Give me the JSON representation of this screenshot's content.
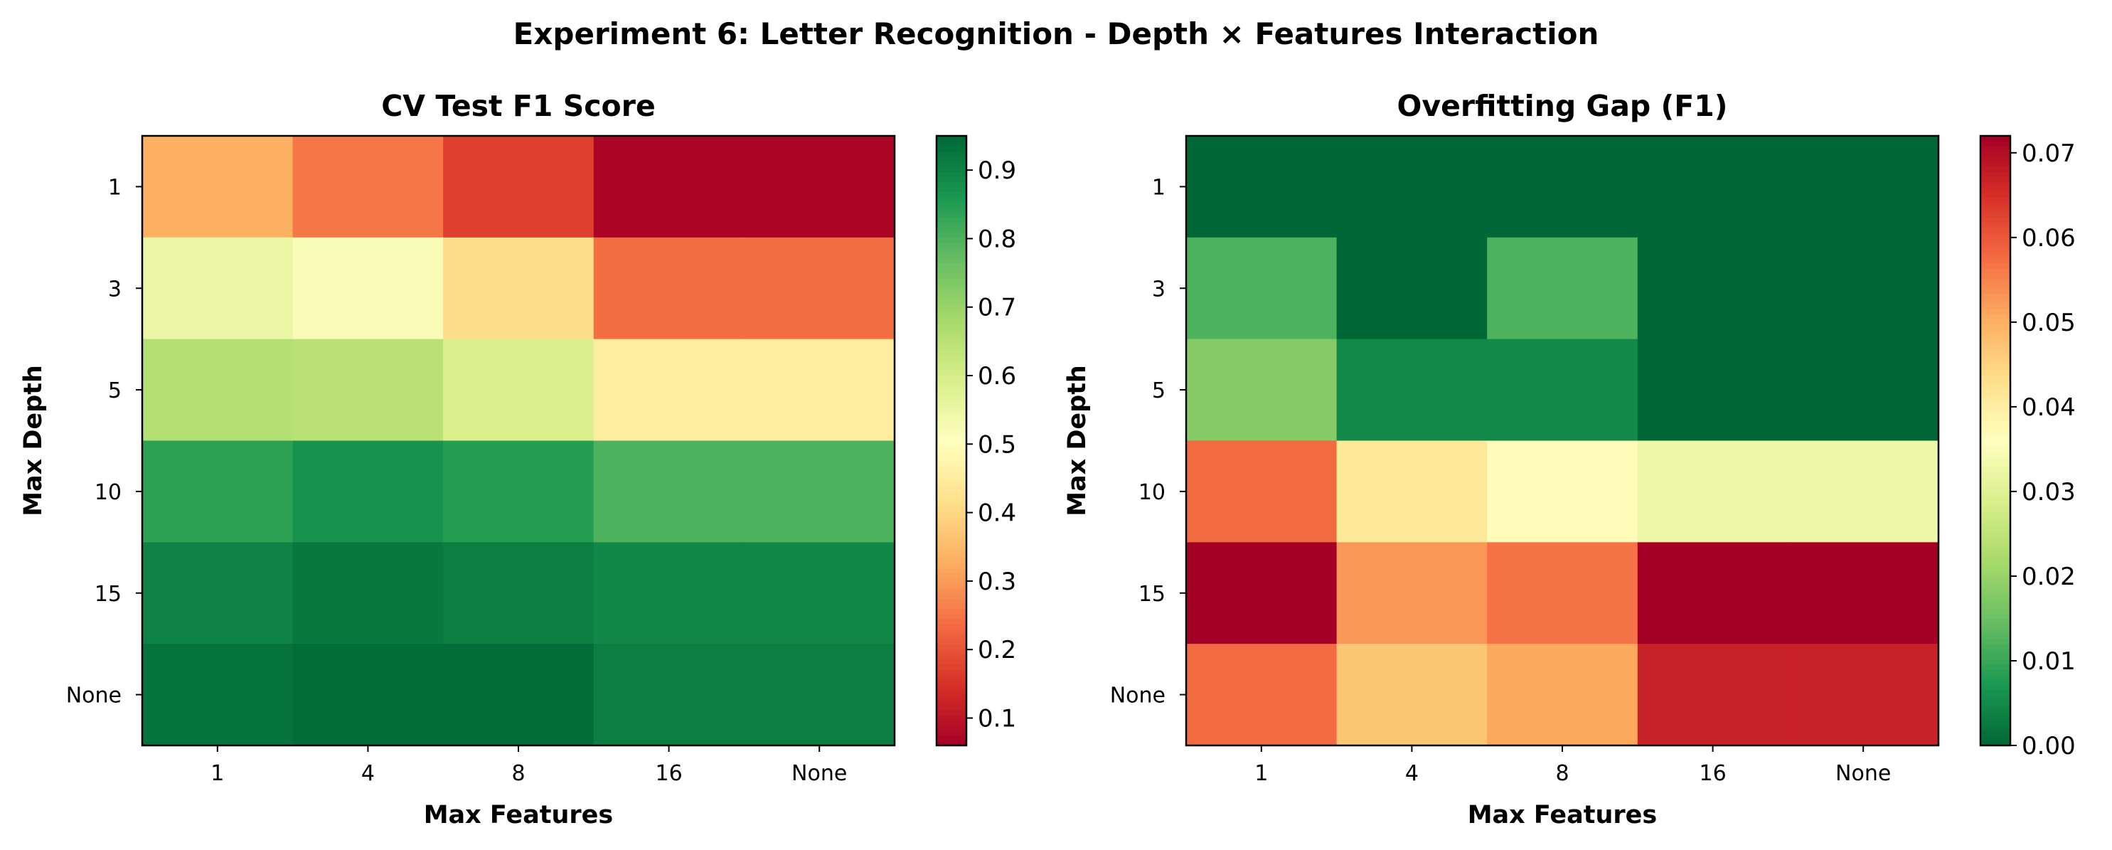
{
  "title": "Experiment 6: Letter Recognition - Depth × Features Interaction",
  "chart_data": [
    {
      "type": "heatmap",
      "title": "CV Test F1 Score",
      "xlabel": "Max Features",
      "ylabel": "Max Depth",
      "x_categories": [
        "1",
        "4",
        "8",
        "16",
        "None"
      ],
      "y_categories": [
        "1",
        "3",
        "5",
        "10",
        "15",
        "None"
      ],
      "values": [
        [
          0.33,
          0.25,
          0.17,
          0.07,
          0.07
        ],
        [
          0.55,
          0.52,
          0.41,
          0.24,
          0.24
        ],
        [
          0.66,
          0.65,
          0.59,
          0.45,
          0.45
        ],
        [
          0.84,
          0.87,
          0.85,
          0.8,
          0.8
        ],
        [
          0.9,
          0.92,
          0.91,
          0.89,
          0.89
        ],
        [
          0.93,
          0.94,
          0.94,
          0.91,
          0.91
        ]
      ],
      "colorscale": "RdYlGn",
      "vmin": 0.06,
      "vmax": 0.95,
      "colorbar_ticks": [
        "0.1",
        "0.2",
        "0.3",
        "0.4",
        "0.5",
        "0.6",
        "0.7",
        "0.8",
        "0.9"
      ]
    },
    {
      "type": "heatmap",
      "title": "Overfitting Gap (F1)",
      "xlabel": "Max Features",
      "ylabel": "Max Depth",
      "x_categories": [
        "1",
        "4",
        "8",
        "16",
        "None"
      ],
      "y_categories": [
        "1",
        "3",
        "5",
        "10",
        "15",
        "None"
      ],
      "values": [
        [
          0.0,
          0.0,
          0.0,
          0.0,
          0.0
        ],
        [
          0.012,
          0.0,
          0.012,
          0.0,
          0.0
        ],
        [
          0.018,
          0.005,
          0.005,
          0.0,
          0.0
        ],
        [
          0.058,
          0.041,
          0.037,
          0.033,
          0.033
        ],
        [
          0.072,
          0.053,
          0.057,
          0.072,
          0.072
        ],
        [
          0.058,
          0.047,
          0.051,
          0.067,
          0.067
        ]
      ],
      "colorscale": "RdYlGn_r",
      "vmin": 0.0,
      "vmax": 0.072,
      "colorbar_ticks": [
        "0.00",
        "0.01",
        "0.02",
        "0.03",
        "0.04",
        "0.05",
        "0.06",
        "0.07"
      ]
    }
  ]
}
